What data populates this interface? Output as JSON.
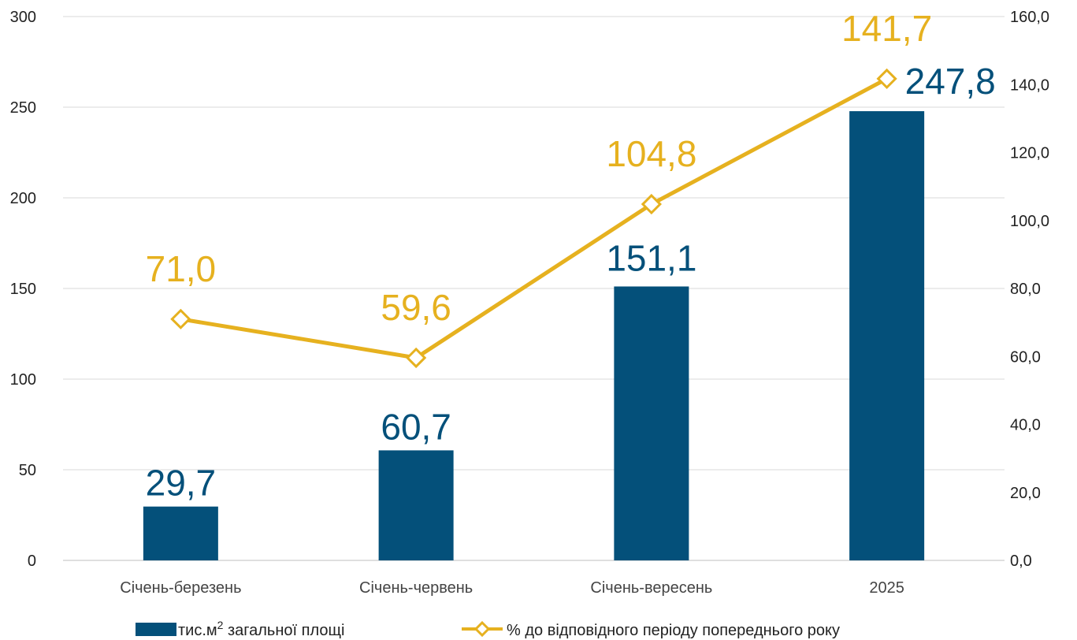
{
  "chart_data": {
    "type": "bar",
    "categories": [
      "Січень-березень",
      "Січень-червень",
      "Січень-вересень",
      "2025"
    ],
    "series": [
      {
        "name": "тис.м",
        "name_sup": "2",
        "name_suffix": " загальної площі",
        "type": "bar",
        "axis": "left",
        "values": [
          29.7,
          60.7,
          151.1,
          247.8
        ],
        "labels": [
          "29,7",
          "60,7",
          "151,1",
          "247,8"
        ],
        "color": "#04507A"
      },
      {
        "name": "% до відповідного періоду попереднього року",
        "type": "line",
        "axis": "right",
        "values": [
          71.0,
          59.6,
          104.8,
          141.7
        ],
        "labels": [
          "71,0",
          "59,6",
          "104,8",
          "141,7"
        ],
        "color": "#E6B11F",
        "marker": "diamond"
      }
    ],
    "y_left": {
      "ylim": [
        0,
        300
      ],
      "ticks": [
        "0",
        "50",
        "100",
        "150",
        "200",
        "250",
        "300"
      ]
    },
    "y_right": {
      "ylim": [
        0,
        160
      ],
      "ticks": [
        "0,0",
        "20,0",
        "40,0",
        "60,0",
        "80,0",
        "100,0",
        "120,0",
        "140,0",
        "160,0"
      ]
    },
    "grid": true,
    "legend": "bottom-center"
  }
}
